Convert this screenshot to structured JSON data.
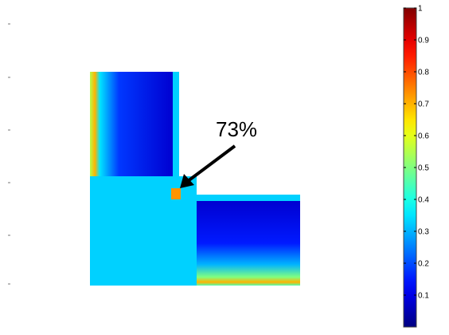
{
  "chart_data": {
    "type": "heatmap",
    "colormap": "jet",
    "annotation": {
      "text": "73%",
      "value": 0.73
    },
    "colorbar": {
      "min": 0,
      "max": 1,
      "ticks": [
        0.1,
        0.2,
        0.3,
        0.4,
        0.5,
        0.6,
        0.7,
        0.8,
        0.9,
        1
      ],
      "tick_labels": [
        "0.1",
        "0.2",
        "0.3",
        "0.4",
        "0.5",
        "0.6",
        "0.7",
        "0.8",
        "0.9",
        "1"
      ]
    },
    "regions": [
      {
        "name": "vertical-arm",
        "gradient": "horizontal",
        "stops": [
          [
            0,
            0.55
          ],
          [
            0.06,
            0.7
          ],
          [
            0.12,
            0.35
          ],
          [
            0.35,
            0.18
          ],
          [
            1,
            0.08
          ]
        ]
      },
      {
        "name": "corner-block",
        "value": 0.33
      },
      {
        "name": "horizontal-arm",
        "gradient": "vertical",
        "stops": [
          [
            0,
            0.08
          ],
          [
            0.5,
            0.15
          ],
          [
            0.75,
            0.3
          ],
          [
            0.9,
            0.5
          ],
          [
            0.96,
            0.7
          ],
          [
            1,
            0.45
          ]
        ]
      },
      {
        "name": "inner-corner-edge",
        "value": 0.73
      }
    ]
  }
}
